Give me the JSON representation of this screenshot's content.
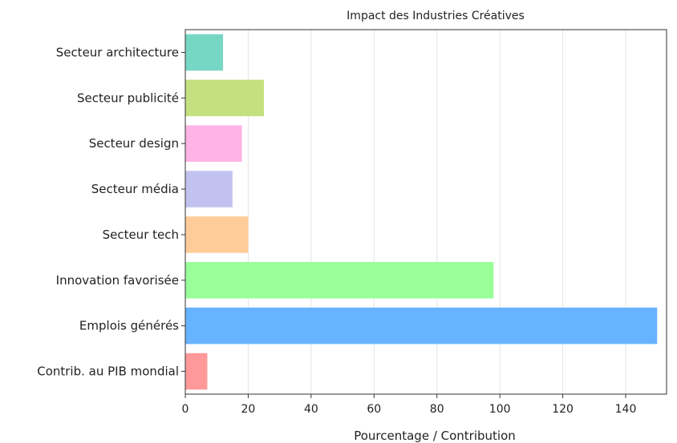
{
  "chart_data": {
    "type": "bar",
    "orientation": "horizontal",
    "title": "Impact des Industries Créatives",
    "xlabel": "Pourcentage / Contribution",
    "ylabel": "",
    "xlim": [
      0,
      153
    ],
    "xticks": [
      0,
      20,
      40,
      60,
      80,
      100,
      120,
      140
    ],
    "grid": "vertical",
    "categories": [
      "Contrib. au PIB mondial",
      "Emplois générés",
      "Innovation favorisée",
      "Secteur tech",
      "Secteur média",
      "Secteur design",
      "Secteur publicité",
      "Secteur architecture"
    ],
    "values": [
      7,
      150,
      98,
      20,
      15,
      18,
      25,
      12
    ],
    "colors": [
      "#ff9999",
      "#66b3ff",
      "#99ff99",
      "#ffcc99",
      "#c2c2f0",
      "#ffb3e6",
      "#c4e17f",
      "#76d7c4"
    ]
  }
}
